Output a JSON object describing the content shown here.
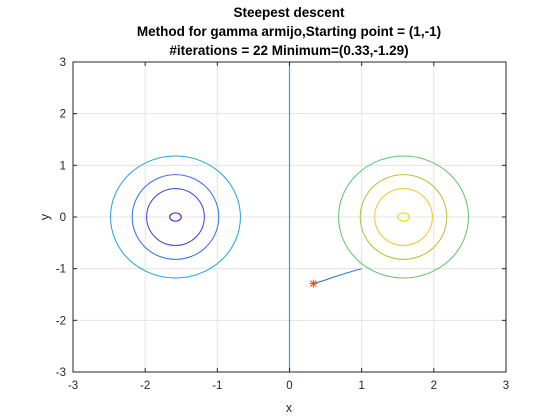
{
  "chart_data": {
    "type": "contour",
    "title_lines": [
      "Steepest descent",
      "Method for gamma armijo,Starting point = (1,-1)",
      "#iterations = 22 Minimum=(0.33,-1.29)"
    ],
    "xlabel": "x",
    "ylabel": "y",
    "xlim": [
      -3,
      3
    ],
    "ylim": [
      -3,
      3
    ],
    "xticks": [
      -3,
      -2,
      -1,
      0,
      1,
      2,
      3
    ],
    "yticks": [
      -3,
      -2,
      -1,
      0,
      1,
      2,
      3
    ],
    "grid": true,
    "contours": [
      {
        "cx": -1.58,
        "cy": 0.0,
        "rx": 0.08,
        "ry": 0.08,
        "color": "#2a1ab0"
      },
      {
        "cx": -1.58,
        "cy": 0.0,
        "rx": 0.4,
        "ry": 0.55,
        "color": "#3c3ee6"
      },
      {
        "cx": -1.58,
        "cy": 0.0,
        "rx": 0.6,
        "ry": 0.82,
        "color": "#2f6ff0"
      },
      {
        "cx": -1.58,
        "cy": 0.0,
        "rx": 0.9,
        "ry": 1.18,
        "color": "#1ea3dc"
      },
      {
        "cx": 1.58,
        "cy": 0.0,
        "rx": 0.08,
        "ry": 0.08,
        "color": "#e3d40a"
      },
      {
        "cx": 1.58,
        "cy": 0.0,
        "rx": 0.4,
        "ry": 0.55,
        "color": "#f0c428"
      },
      {
        "cx": 1.58,
        "cy": 0.0,
        "rx": 0.6,
        "ry": 0.82,
        "color": "#b8bd32"
      },
      {
        "cx": 1.58,
        "cy": 0.0,
        "rx": 0.9,
        "ry": 1.18,
        "color": "#5cc46a"
      }
    ],
    "zero_line": {
      "x": 0,
      "color": "#20b2b2"
    },
    "path": {
      "color": "#1f6fd0",
      "points": [
        [
          1.0,
          -1.0
        ],
        [
          0.8,
          -1.08
        ],
        [
          0.6,
          -1.17
        ],
        [
          0.45,
          -1.24
        ],
        [
          0.33,
          -1.29
        ]
      ]
    },
    "minimum": {
      "x": 0.33,
      "y": -1.29,
      "color": "#d95319"
    }
  }
}
